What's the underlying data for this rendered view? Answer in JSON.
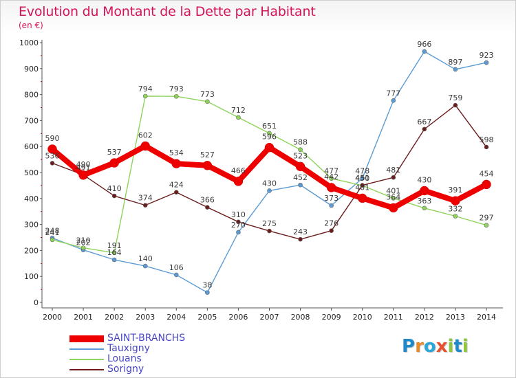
{
  "chart_data": {
    "type": "line",
    "title": "Evolution du Montant de la Dette par Habitant",
    "unit_label": "(en €)",
    "x": [
      "2000",
      "2001",
      "2002",
      "2003",
      "2004",
      "2005",
      "2006",
      "2007",
      "2008",
      "2009",
      "2010",
      "2011",
      "2012",
      "2013",
      "2014"
    ],
    "ylim": [
      0,
      1000
    ],
    "yticks": [
      0,
      100,
      200,
      300,
      400,
      500,
      600,
      700,
      800,
      900,
      1000
    ],
    "grid": false,
    "legend_position": "bottom-left",
    "series": [
      {
        "name": "SAINT-BRANCHS",
        "color": "#ee0000",
        "values": [
          590,
          490,
          537,
          602,
          534,
          527,
          466,
          596,
          523,
          442,
          401,
          364,
          430,
          391,
          454
        ]
      },
      {
        "name": "Tauxigny",
        "color": "#5b9bd5",
        "values": [
          248,
          202,
          164,
          140,
          106,
          38,
          270,
          430,
          452,
          373,
          478,
          777,
          966,
          897,
          923
        ]
      },
      {
        "name": "Louans",
        "color": "#8ed45a",
        "values": [
          241,
          210,
          191,
          794,
          793,
          773,
          712,
          651,
          588,
          477,
          450,
          401,
          363,
          332,
          297
        ]
      },
      {
        "name": "Sorigny",
        "color": "#6b1c1c",
        "values": [
          536,
          491,
          410,
          374,
          424,
          366,
          310,
          275,
          243,
          276,
          451,
          481,
          667,
          759,
          598
        ]
      }
    ]
  },
  "legend": {
    "items": [
      {
        "label": "SAINT-BRANCHS",
        "color": "#ee0000"
      },
      {
        "label": "Tauxigny",
        "color": "#5b9bd5"
      },
      {
        "label": "Louans",
        "color": "#8ed45a"
      },
      {
        "label": "Sorigny",
        "color": "#6b1c1c"
      }
    ]
  },
  "brand": {
    "name": "Proxiti",
    "letters": [
      "P",
      "r",
      "o",
      "x",
      "i",
      "t",
      "i"
    ],
    "colors": [
      "#1e88c8",
      "#e8892b",
      "#2aa7d8",
      "#e8502b",
      "#8cc63f",
      "#1e88c8",
      "#8cc63f"
    ]
  }
}
